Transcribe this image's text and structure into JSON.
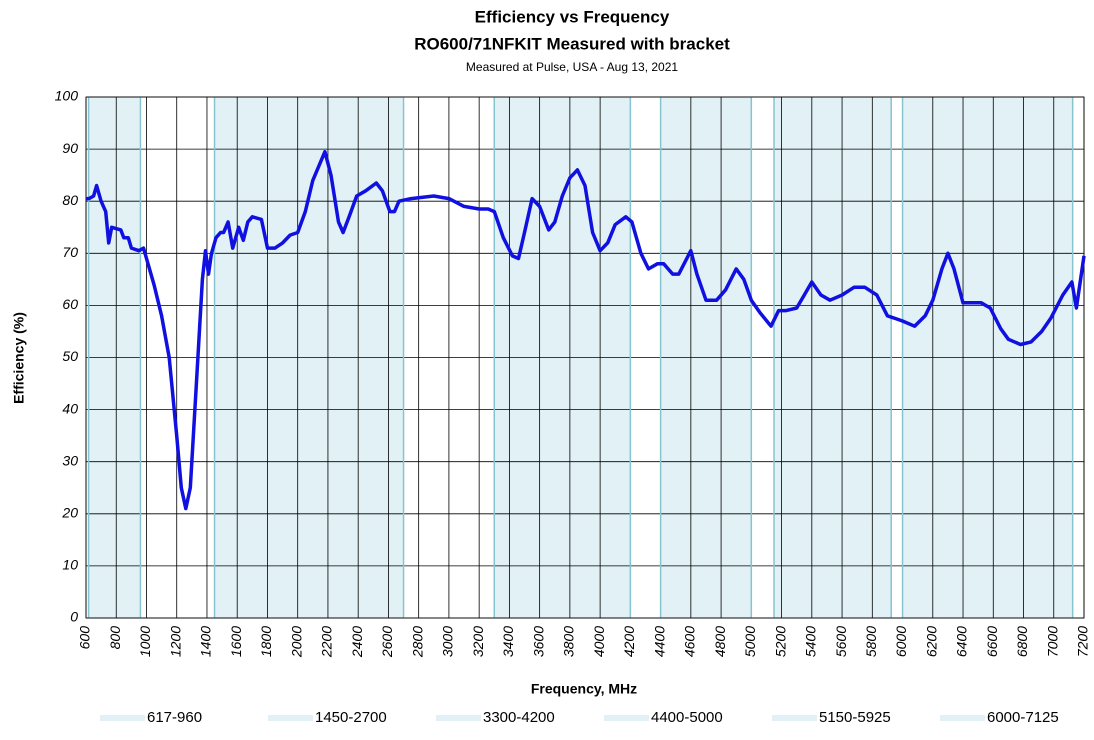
{
  "chart_data": {
    "type": "line",
    "title": "Efficiency vs Frequency",
    "title2": "RO600/71NFKIT Measured with bracket",
    "subtitle": "Measured at Pulse, USA - Aug 13, 2021",
    "xlabel": "Frequency, MHz",
    "ylabel": "Efficiency (%)",
    "xlim": [
      600,
      7200
    ],
    "ylim": [
      0,
      100
    ],
    "xticks": [
      600,
      800,
      1000,
      1200,
      1400,
      1600,
      1800,
      2000,
      2200,
      2400,
      2600,
      2800,
      3000,
      3200,
      3400,
      3600,
      3800,
      4000,
      4200,
      4400,
      4600,
      4800,
      5000,
      5200,
      5400,
      5600,
      5800,
      6000,
      6200,
      6400,
      6600,
      6800,
      7000,
      7200
    ],
    "yticks": [
      0,
      10,
      20,
      30,
      40,
      50,
      60,
      70,
      80,
      90,
      100
    ],
    "grid": true,
    "bands": [
      {
        "label": "617-960",
        "from": 617,
        "to": 960
      },
      {
        "label": "1450-2700",
        "from": 1450,
        "to": 2700
      },
      {
        "label": "3300-4200",
        "from": 3300,
        "to": 4200
      },
      {
        "label": "4400-5000",
        "from": 4400,
        "to": 5000
      },
      {
        "label": "5150-5925",
        "from": 5150,
        "to": 5925
      },
      {
        "label": "6000-7125",
        "from": 6000,
        "to": 7125
      }
    ],
    "band_color": "#e1f1f5",
    "band_edge_color": "#86c4d2",
    "series": [
      {
        "color": "#1010e0",
        "x": [
          600,
          620,
          650,
          670,
          700,
          730,
          750,
          770,
          830,
          850,
          880,
          900,
          950,
          980,
          1000,
          1050,
          1100,
          1150,
          1200,
          1230,
          1260,
          1290,
          1330,
          1370,
          1390,
          1410,
          1430,
          1460,
          1490,
          1510,
          1540,
          1570,
          1610,
          1640,
          1670,
          1700,
          1760,
          1800,
          1850,
          1900,
          1950,
          2000,
          2050,
          2100,
          2180,
          2220,
          2270,
          2300,
          2340,
          2390,
          2450,
          2520,
          2560,
          2610,
          2640,
          2670,
          2750,
          2900,
          3000,
          3100,
          3200,
          3260,
          3300,
          3360,
          3420,
          3460,
          3500,
          3550,
          3600,
          3660,
          3700,
          3750,
          3800,
          3850,
          3900,
          3950,
          4000,
          4050,
          4100,
          4170,
          4210,
          4270,
          4320,
          4380,
          4420,
          4480,
          4520,
          4600,
          4640,
          4700,
          4770,
          4830,
          4900,
          4950,
          5000,
          5060,
          5130,
          5180,
          5230,
          5300,
          5350,
          5400,
          5460,
          5520,
          5600,
          5680,
          5750,
          5830,
          5900,
          5950,
          6000,
          6080,
          6150,
          6200,
          6260,
          6300,
          6340,
          6400,
          6450,
          6520,
          6580,
          6650,
          6700,
          6780,
          6850,
          6920,
          6980,
          7060,
          7120,
          7150,
          7200
        ],
        "values": [
          80.5,
          80.5,
          81,
          83,
          80,
          78,
          72,
          75,
          74.5,
          73,
          73,
          71,
          70.5,
          71,
          69,
          64,
          58,
          50,
          35,
          25,
          21,
          25,
          45,
          65,
          70.5,
          66,
          70,
          73,
          74,
          74,
          76,
          71,
          75,
          72.5,
          76,
          77,
          76.5,
          71,
          71,
          72,
          73.5,
          74,
          78,
          84,
          89.5,
          85,
          76,
          74,
          77,
          81,
          82,
          83.5,
          82,
          78,
          78,
          80,
          80.5,
          81,
          80.5,
          79,
          78.5,
          78.5,
          78,
          73,
          69.5,
          69,
          74,
          80.5,
          79,
          74.5,
          76,
          81,
          84.5,
          86,
          83,
          74,
          70.5,
          72,
          75.5,
          77,
          76,
          70,
          67,
          68,
          68,
          66,
          66,
          70.5,
          66,
          61,
          61,
          63,
          67,
          65,
          61,
          58.5,
          56,
          59,
          59,
          59.5,
          62,
          64.5,
          62,
          61,
          62,
          63.5,
          63.5,
          62,
          58,
          57.5,
          57,
          56,
          58,
          61,
          67,
          70,
          67,
          60.5,
          60.5,
          60.5,
          59.5,
          55.5,
          53.5,
          52.5,
          53,
          55,
          57.5,
          62,
          64.5,
          59.5,
          69.5
        ]
      }
    ]
  }
}
